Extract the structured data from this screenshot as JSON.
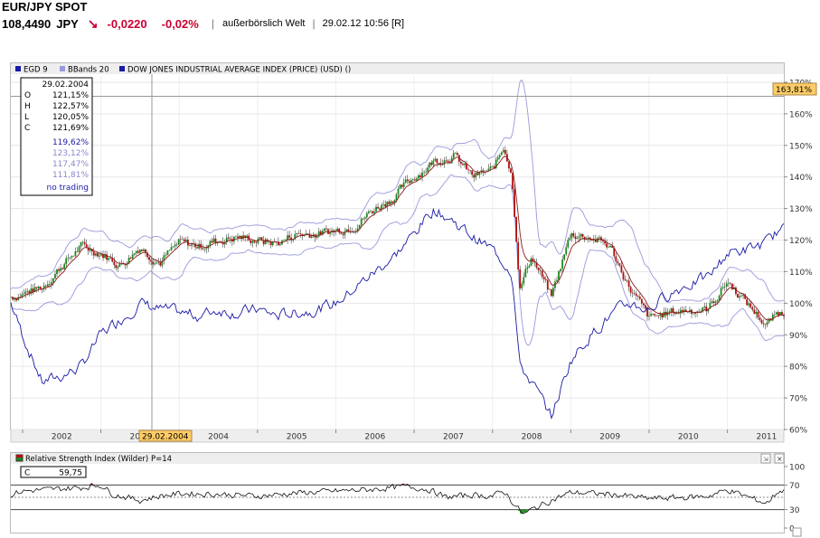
{
  "header": {
    "title": "EUR/JPY SPOT",
    "price": "108,4490",
    "currency": "JPY",
    "arrow": "↘",
    "change": "-0,0220",
    "change_pct": "-0,02%",
    "market": "außerbörslich Welt",
    "timestamp": "29.02.12 10:56 [R]"
  },
  "legend": [
    {
      "label": "EGD 9",
      "color": "#1a1aa6"
    },
    {
      "label": "BBands 20",
      "color": "#9999dd"
    },
    {
      "label": "DOW JONES INDUSTRIAL AVERAGE INDEX (PRICE) (USD) ()",
      "color": "#1a1aa6"
    }
  ],
  "ohlc_box": {
    "date": "29.02.2004",
    "rows": [
      {
        "key": "O",
        "value": "121,15%"
      },
      {
        "key": "H",
        "value": "122,57%"
      },
      {
        "key": "L",
        "value": "120,05%"
      },
      {
        "key": "C",
        "value": "121,69%"
      }
    ],
    "extra": [
      "119,62%",
      "123,12%",
      "117,47%",
      "111,81%"
    ],
    "no_trading": "no trading"
  },
  "cursor_date_label": "29.02.2004",
  "last_value_label": "163,81%",
  "rsi_box": {
    "key": "C",
    "value": "59,75"
  },
  "colors": {
    "candle_up": "#1a8a1a",
    "candle_down": "#b01010",
    "dow": "#1a1aa6",
    "bbands": "#9999dd",
    "egd": "#8b1a1a",
    "label_bg": "#ffcc66"
  },
  "chart_data": [
    {
      "type": "line",
      "title": "",
      "x": [
        2001.85,
        2002.0,
        2002.25,
        2002.5,
        2002.75,
        2003.0,
        2003.25,
        2003.5,
        2003.75,
        2004.0,
        2004.25,
        2004.5,
        2004.75,
        2005.0,
        2005.25,
        2005.5,
        2005.75,
        2006.0,
        2006.25,
        2006.5,
        2006.75,
        2007.0,
        2007.25,
        2007.5,
        2007.75,
        2008.0,
        2008.15,
        2008.25,
        2008.35,
        2008.5,
        2008.75,
        2009.0,
        2009.25,
        2009.5,
        2009.75,
        2010.0,
        2010.25,
        2010.5,
        2010.75,
        2011.0,
        2011.25,
        2011.5,
        2011.65
      ],
      "series": [
        {
          "name": "EUR/JPY SPOT",
          "values": [
            102,
            103,
            105,
            112,
            118,
            116,
            112,
            118,
            113,
            119,
            118,
            120,
            121,
            120,
            119,
            122,
            122,
            123,
            125,
            130,
            134,
            140,
            145,
            147,
            140,
            142,
            150,
            140,
            105,
            115,
            102,
            122,
            121,
            118,
            105,
            95,
            97,
            98,
            98,
            107,
            100,
            93,
            97
          ]
        },
        {
          "name": "DOW JONES INDUSTRIAL AVERAGE INDEX (PRICE) (USD) ()",
          "values": [
            100,
            90,
            75,
            77,
            80,
            90,
            95,
            100,
            98,
            97,
            96,
            98,
            97,
            98,
            96,
            97,
            98,
            100,
            105,
            110,
            115,
            122,
            130,
            126,
            121,
            117,
            113,
            110,
            80,
            75,
            64,
            82,
            90,
            96,
            100,
            98,
            103,
            106,
            108,
            116,
            117,
            119,
            123
          ]
        }
      ],
      "xlabel": "",
      "ylabel": "",
      "x_tick_labels": [
        "2002",
        "2003",
        "2004",
        "2005",
        "2006",
        "2007",
        "2008",
        "2009",
        "2010",
        "2011"
      ],
      "y_tick_labels": [
        "170%",
        "160%",
        "150%",
        "140%",
        "130%",
        "120%",
        "110%",
        "100%",
        "90%",
        "80%",
        "70%",
        "60%"
      ],
      "ylim": [
        60,
        172
      ],
      "grid": true,
      "legend": "top-left"
    },
    {
      "type": "line",
      "title": "Relative Strength Index (Wilder) P=14",
      "x": [
        2001.85,
        2002.0,
        2002.25,
        2002.5,
        2002.75,
        2003.0,
        2003.15,
        2003.5,
        2003.75,
        2004.0,
        2004.5,
        2005.0,
        2005.5,
        2006.0,
        2006.5,
        2006.9,
        2007.2,
        2007.4,
        2007.75,
        2008.0,
        2008.15,
        2008.3,
        2008.4,
        2008.5,
        2008.75,
        2009.0,
        2009.5,
        2010.0,
        2010.5,
        2010.75,
        2011.0,
        2011.5,
        2011.65
      ],
      "series": [
        {
          "name": "RSI",
          "values": [
            55,
            60,
            62,
            64,
            66,
            70,
            55,
            45,
            52,
            56,
            55,
            52,
            57,
            60,
            63,
            68,
            62,
            50,
            54,
            52,
            60,
            35,
            22,
            30,
            45,
            58,
            55,
            48,
            50,
            52,
            62,
            40,
            60
          ]
        }
      ],
      "y_tick_labels": [
        "100",
        "70",
        "30",
        "0"
      ],
      "ylim": [
        0,
        100
      ]
    }
  ]
}
